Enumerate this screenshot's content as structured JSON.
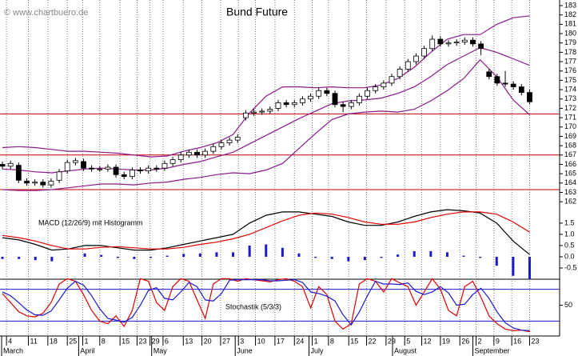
{
  "watermark": "© www.chartbuero.de",
  "chart_data": [
    {
      "type": "candlestick",
      "title": "Bund Future",
      "xlim": [
        -0.3,
        68.7
      ],
      "ylim": [
        161.5,
        183.6
      ],
      "yticks": [
        162,
        163,
        164,
        165,
        166,
        167,
        168,
        169,
        170,
        171,
        172,
        173,
        174,
        175,
        176,
        177,
        178,
        179,
        180,
        181,
        182,
        183
      ],
      "color_up": "#ffffff",
      "color_down": "#000000",
      "edge_color": "#000000",
      "open": [
        166.0,
        165.8,
        165.9,
        164.2,
        164.0,
        164.1,
        163.8,
        164.3,
        165.3,
        166.2,
        166.3,
        165.6,
        165.5,
        165.5,
        165.7,
        164.9,
        164.7,
        165.4,
        165.3,
        165.6,
        165.6,
        166.1,
        166.5,
        167.0,
        167.3,
        167.0,
        167.4,
        167.9,
        168.3,
        168.6,
        171.0,
        171.5,
        171.6,
        171.7,
        172.0,
        172.6,
        172.4,
        172.6,
        173.0,
        173.3,
        173.9,
        173.6,
        172.4,
        172.2,
        172.6,
        173.3,
        173.9,
        174.3,
        174.7,
        175.4,
        176.2,
        177.0,
        177.6,
        178.4,
        179.4,
        178.9,
        179.0,
        179.1,
        179.3,
        178.9,
        175.9,
        175.4,
        174.7,
        174.6,
        174.3,
        173.7
      ],
      "high": [
        166.3,
        166.4,
        166.2,
        164.5,
        164.4,
        164.4,
        164.5,
        165.5,
        166.5,
        166.7,
        166.6,
        165.9,
        165.8,
        166.0,
        166.0,
        165.2,
        165.7,
        165.7,
        165.9,
        165.9,
        166.4,
        166.8,
        167.3,
        167.6,
        167.6,
        167.7,
        168.2,
        168.6,
        168.9,
        169.2,
        171.8,
        171.9,
        172.0,
        172.2,
        172.9,
        172.9,
        172.9,
        173.3,
        173.6,
        174.2,
        174.2,
        173.9,
        172.7,
        172.9,
        173.6,
        174.2,
        174.6,
        175.0,
        175.7,
        176.5,
        177.3,
        177.9,
        178.7,
        179.8,
        179.7,
        179.3,
        179.4,
        179.6,
        179.6,
        179.2,
        176.2,
        175.7,
        176.0,
        174.9,
        174.6,
        174.0
      ],
      "low": [
        165.5,
        165.5,
        164.0,
        163.7,
        163.7,
        163.5,
        163.5,
        164.0,
        165.0,
        165.9,
        165.3,
        165.2,
        165.2,
        165.2,
        164.6,
        164.4,
        164.4,
        165.0,
        165.0,
        165.2,
        165.3,
        165.8,
        166.2,
        166.7,
        166.7,
        166.7,
        167.1,
        167.6,
        168.0,
        168.3,
        170.7,
        171.2,
        171.3,
        171.4,
        171.7,
        172.1,
        172.1,
        172.3,
        172.7,
        173.0,
        173.3,
        172.1,
        171.6,
        171.9,
        172.3,
        173.0,
        173.6,
        174.0,
        174.4,
        175.1,
        175.9,
        176.7,
        177.3,
        178.1,
        178.6,
        178.6,
        178.7,
        178.8,
        178.6,
        177.7,
        175.1,
        174.4,
        174.3,
        174.0,
        173.4,
        172.4
      ],
      "close": [
        165.8,
        166.1,
        164.3,
        164.0,
        164.1,
        163.8,
        164.2,
        165.2,
        166.2,
        166.4,
        165.6,
        165.5,
        165.5,
        165.7,
        164.9,
        164.7,
        165.4,
        165.3,
        165.6,
        165.5,
        166.1,
        166.5,
        167.0,
        167.3,
        167.0,
        167.4,
        167.9,
        168.3,
        168.6,
        168.9,
        171.5,
        171.6,
        171.7,
        171.9,
        172.6,
        172.4,
        172.6,
        173.0,
        173.3,
        173.9,
        173.6,
        172.4,
        172.2,
        172.6,
        173.3,
        173.9,
        174.3,
        174.7,
        175.4,
        176.2,
        177.0,
        177.6,
        178.4,
        179.4,
        178.9,
        179.0,
        179.1,
        179.3,
        178.9,
        178.4,
        175.4,
        174.7,
        174.6,
        174.3,
        173.7,
        172.7
      ],
      "series": [
        {
          "color": "#8b1a8b",
          "values": [
            167.8,
            167.9,
            167.8,
            167.6,
            167.4,
            167.4,
            167.3,
            167.2,
            167.0,
            166.8,
            166.9,
            167.4,
            167.8,
            168.3,
            169.2,
            171.5,
            173.3,
            174.3,
            174.3,
            174.2,
            174.3,
            174.2,
            174.2,
            174.5,
            175.2,
            176.4,
            178.0,
            179.4,
            179.9,
            179.9,
            181.0,
            181.7,
            181.9
          ]
        },
        {
          "color": "#8b1a8b",
          "values": [
            165.5,
            165.4,
            165.2,
            165.1,
            165.3,
            165.5,
            165.6,
            165.5,
            165.4,
            165.4,
            165.6,
            166.0,
            166.3,
            166.8,
            167.3,
            168.2,
            169.1,
            170.0,
            170.9,
            171.7,
            172.5,
            172.8,
            172.9,
            173.1,
            173.6,
            174.3,
            175.4,
            176.7,
            177.6,
            178.5,
            178.0,
            177.3,
            176.6
          ]
        },
        {
          "color": "#8b1a8b",
          "values": [
            163.3,
            163.2,
            163.2,
            163.3,
            163.5,
            163.7,
            163.9,
            163.9,
            163.8,
            164.0,
            164.1,
            164.4,
            164.6,
            164.9,
            165.1,
            165.0,
            165.4,
            166.1,
            167.7,
            169.3,
            170.8,
            171.4,
            171.6,
            171.7,
            171.6,
            171.9,
            172.8,
            173.9,
            175.2,
            177.2,
            175.4,
            172.9,
            171.3
          ]
        }
      ],
      "hlines": {
        "color": "#c00000",
        "values": [
          171.4,
          167.0,
          163.3
        ]
      }
    },
    {
      "type": "line",
      "title": "MACD (12/26/9) mit Histogramm",
      "xlim": [
        -0.3,
        68.7
      ],
      "ylim": [
        -1.0,
        2.46
      ],
      "yticks": [
        1.5,
        {
          "value": 1,
          "label": "1.0"
        },
        0.5,
        {
          "value": 0,
          "label": "0.0"
        },
        -0.5
      ],
      "series": [
        {
          "color": "#000000",
          "values": [
            0.85,
            0.75,
            0.55,
            0.3,
            0.35,
            0.5,
            0.5,
            0.4,
            0.3,
            0.3,
            0.4,
            0.55,
            0.7,
            0.85,
            1.0,
            1.5,
            1.85,
            2.0,
            2.0,
            1.9,
            1.8,
            1.55,
            1.4,
            1.4,
            1.55,
            1.8,
            2.0,
            2.1,
            2.05,
            1.95,
            1.5,
            0.7,
            0.1
          ]
        },
        {
          "color": "#e00000",
          "values": [
            0.95,
            0.85,
            0.7,
            0.5,
            0.35,
            0.35,
            0.42,
            0.45,
            0.4,
            0.35,
            0.35,
            0.42,
            0.55,
            0.65,
            0.8,
            1.0,
            1.3,
            1.6,
            1.85,
            1.95,
            1.9,
            1.75,
            1.55,
            1.45,
            1.45,
            1.55,
            1.75,
            1.9,
            2.0,
            2.0,
            1.9,
            1.55,
            1.1
          ]
        }
      ],
      "bars": {
        "color": "#1a1acc",
        "values": [
          -0.1,
          -0.1,
          -0.15,
          -0.2,
          0,
          0.15,
          0.08,
          -0.05,
          -0.1,
          -0.05,
          0.05,
          0.13,
          0.15,
          0.2,
          0.2,
          0.5,
          0.55,
          0.4,
          0.15,
          -0.05,
          -0.1,
          -0.2,
          -0.15,
          -0.05,
          0.1,
          0.25,
          0.25,
          0.2,
          0.05,
          -0.05,
          -0.4,
          -0.85,
          -1.0
        ]
      }
    },
    {
      "type": "line",
      "title": "Stochastik (5/3/3)",
      "xlim": [
        -0.3,
        68.7
      ],
      "ylim": [
        -5,
        105
      ],
      "yticks": [
        50
      ],
      "levels": {
        "color": "#1a1acc",
        "values": [
          80,
          20
        ]
      },
      "series": [
        {
          "color": "#e00000",
          "values": [
            72,
            55,
            38,
            30,
            28,
            35,
            55,
            90,
            100,
            95,
            70,
            40,
            20,
            15,
            30,
            10,
            40,
            100,
            95,
            55,
            40,
            85,
            100,
            95,
            60,
            25,
            90,
            100,
            100,
            95,
            100,
            98,
            96,
            94,
            98,
            100,
            95,
            85,
            45,
            85,
            70,
            20,
            5,
            15,
            90,
            100,
            95,
            75,
            100,
            92,
            85,
            50,
            75,
            100,
            80,
            40,
            30,
            85,
            95,
            65,
            30,
            15,
            5,
            2,
            3,
            0
          ]
        },
        {
          "color": "#1a1acc",
          "values": [
            75,
            68,
            55,
            41,
            32,
            31,
            39,
            60,
            82,
            95,
            88,
            68,
            43,
            25,
            22,
            18,
            27,
            50,
            78,
            83,
            63,
            60,
            75,
            93,
            85,
            60,
            58,
            72,
            97,
            98,
            98,
            98,
            98,
            96,
            96,
            97,
            98,
            93,
            75,
            72,
            67,
            58,
            32,
            13,
            37,
            68,
            95,
            90,
            90,
            89,
            92,
            76,
            70,
            75,
            85,
            73,
            50,
            52,
            70,
            82,
            63,
            37,
            17,
            7,
            3,
            2
          ]
        }
      ],
      "xticks": [
        {
          "value": 0.5,
          "label": "4"
        },
        {
          "value": 3.2,
          "label": "11"
        },
        {
          "value": 5.6,
          "label": "18"
        },
        {
          "value": 8.0,
          "label": "25"
        },
        {
          "value": 9.9,
          "label": "1"
        },
        {
          "value": 12.0,
          "label": "8"
        },
        {
          "value": 14.5,
          "label": "15"
        },
        {
          "value": 16.6,
          "label": "23"
        },
        {
          "value": 18.2,
          "label": "29"
        },
        {
          "value": 19.8,
          "label": "6"
        },
        {
          "value": 22.3,
          "label": "13"
        },
        {
          "value": 24.6,
          "label": "20"
        },
        {
          "value": 26.9,
          "label": "27"
        },
        {
          "value": 29.1,
          "label": "3"
        },
        {
          "value": 31.2,
          "label": "10"
        },
        {
          "value": 33.6,
          "label": "17"
        },
        {
          "value": 36.0,
          "label": "24"
        },
        {
          "value": 38.2,
          "label": "1"
        },
        {
          "value": 40.2,
          "label": "8"
        },
        {
          "value": 42.7,
          "label": "15"
        },
        {
          "value": 44.9,
          "label": "22"
        },
        {
          "value": 47.3,
          "label": "29"
        },
        {
          "value": 49.6,
          "label": "5"
        },
        {
          "value": 51.7,
          "label": "12"
        },
        {
          "value": 54.0,
          "label": "19"
        },
        {
          "value": 56.4,
          "label": "26"
        },
        {
          "value": 58.4,
          "label": "2"
        },
        {
          "value": 60.6,
          "label": "9"
        },
        {
          "value": 62.8,
          "label": "16"
        },
        {
          "value": 65.0,
          "label": "23"
        }
      ],
      "months": [
        {
          "value": -0.1,
          "label": "March"
        },
        {
          "value": 9.4,
          "label": "April"
        },
        {
          "value": 18.4,
          "label": "May"
        },
        {
          "value": 28.7,
          "label": "June"
        },
        {
          "value": 37.8,
          "label": "July"
        },
        {
          "value": 48.1,
          "label": "August"
        },
        {
          "value": 58.0,
          "label": "September"
        }
      ]
    }
  ]
}
